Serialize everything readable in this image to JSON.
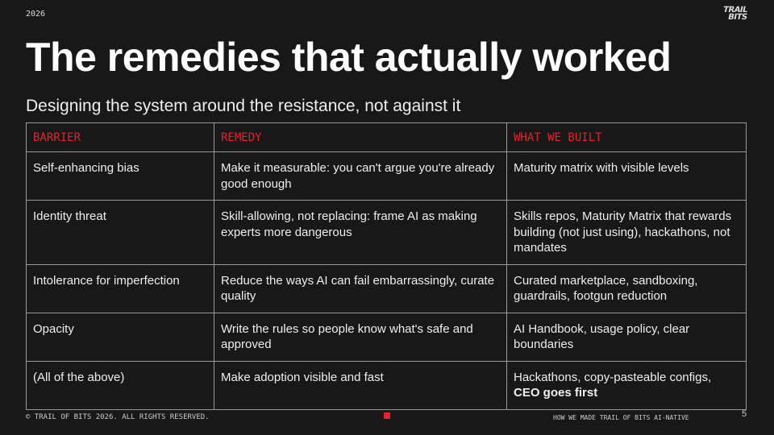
{
  "header": {
    "year": "2026",
    "logo": "TRAIL BITS",
    "title": "The remedies that actually worked",
    "subtitle": "Designing the system around the resistance, not against it"
  },
  "table": {
    "columns": [
      "BARRIER",
      "REMEDY",
      "WHAT WE BUILT"
    ],
    "rows": [
      {
        "barrier": "Self-enhancing bias",
        "remedy": "Make it measurable: you can't argue you're already good enough",
        "built": "Maturity matrix with visible levels"
      },
      {
        "barrier": "Identity threat",
        "remedy": "Skill-allowing, not replacing: frame AI as making experts more dangerous",
        "built": "Skills repos, Maturity Matrix that rewards building (not just using), hackathons, not mandates"
      },
      {
        "barrier": "Intolerance for imperfection",
        "remedy": "Reduce the ways AI can fail embarrassingly, curate quality",
        "built": "Curated marketplace, sandboxing, guardrails, footgun reduction"
      },
      {
        "barrier": "Opacity",
        "remedy": "Write the rules so people know what's safe and approved",
        "built": "AI Handbook, usage policy, clear boundaries"
      },
      {
        "barrier": "(All of the above)",
        "remedy": "Make adoption visible and fast",
        "built": "Hackathons, copy-pasteable configs,",
        "built_bold": "CEO goes first"
      }
    ]
  },
  "footer": {
    "copyright": "© TRAIL OF BITS 2026. ALL RIGHTS RESERVED.",
    "deck_title": "HOW WE MADE TRAIL OF BITS AI-NATIVE",
    "page": "5"
  },
  "colors": {
    "accent": "#e8202a",
    "background": "#181818"
  }
}
